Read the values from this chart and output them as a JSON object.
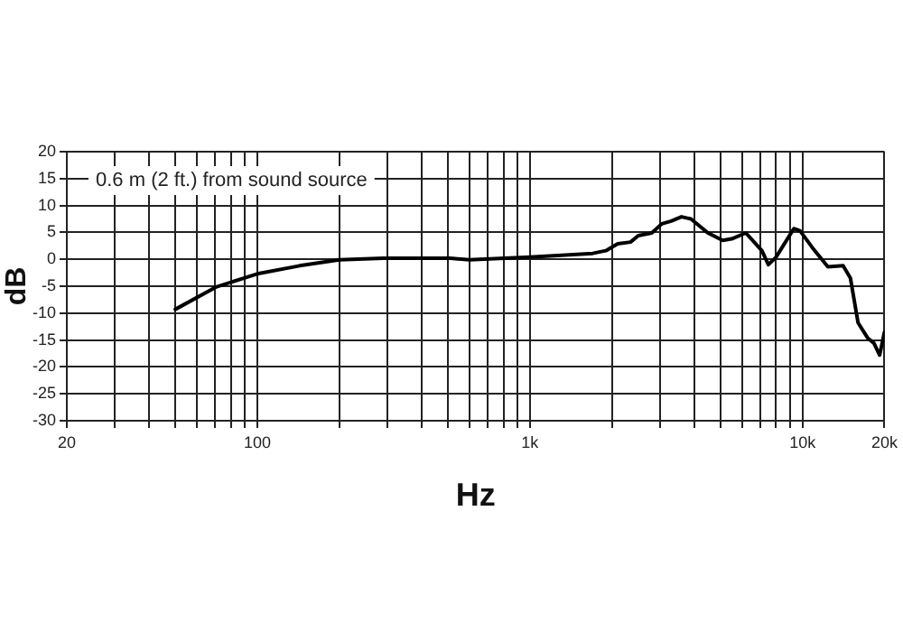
{
  "chart_data": {
    "type": "line",
    "xlabel": "Hz",
    "ylabel": "dB",
    "annotations": [
      "0.6 m (2 ft.) from sound source"
    ],
    "log": "x",
    "grid": true,
    "legend": false,
    "marker": "none",
    "line_style": "solid",
    "xlim": [
      20,
      20000
    ],
    "ylim": [
      -30,
      20
    ],
    "xticks": [
      20,
      {
        "value": 30,
        "label": null
      },
      {
        "value": 40,
        "label": null
      },
      {
        "value": 50,
        "label": null
      },
      {
        "value": 60,
        "label": null
      },
      {
        "value": 70,
        "label": null
      },
      {
        "value": 80,
        "label": null
      },
      {
        "value": 90,
        "label": null
      },
      100,
      {
        "value": 200,
        "label": null
      },
      {
        "value": 300,
        "label": null
      },
      {
        "value": 400,
        "label": null
      },
      {
        "value": 500,
        "label": null
      },
      {
        "value": 600,
        "label": null
      },
      {
        "value": 700,
        "label": null
      },
      {
        "value": 800,
        "label": null
      },
      {
        "value": 900,
        "label": null
      },
      {
        "value": 1000,
        "label": "1k"
      },
      {
        "value": 2000,
        "label": null
      },
      {
        "value": 3000,
        "label": null
      },
      {
        "value": 4000,
        "label": null
      },
      {
        "value": 5000,
        "label": null
      },
      {
        "value": 6000,
        "label": null
      },
      {
        "value": 7000,
        "label": null
      },
      {
        "value": 8000,
        "label": null
      },
      {
        "value": 9000,
        "label": null
      },
      {
        "value": 10000,
        "label": "10k"
      },
      {
        "value": 20000,
        "label": "20k"
      }
    ],
    "yticks": [
      -30,
      -25,
      -20,
      -15,
      -10,
      -5,
      0,
      5,
      10,
      15,
      20
    ],
    "series": [
      {
        "color": "#000000",
        "x": [
          50,
          71,
          100,
          143,
          200,
          290,
          510,
          600,
          1000,
          1350,
          1700,
          1900,
          2100,
          2340,
          2500,
          2800,
          3050,
          3300,
          3600,
          3900,
          4500,
          5100,
          5500,
          6200,
          7100,
          7500,
          8000,
          9300,
          9800,
          10900,
          12400,
          14100,
          15000,
          16000,
          17400,
          18300,
          19200,
          20000
        ],
        "values": [
          -9.3,
          -5.1,
          -2.7,
          -1.2,
          -0.1,
          0.2,
          0.2,
          -0.1,
          0.4,
          0.8,
          1.1,
          1.6,
          2.9,
          3.2,
          4.4,
          4.9,
          6.6,
          7.1,
          7.9,
          7.5,
          4.9,
          3.5,
          3.8,
          4.9,
          1.6,
          -1,
          0.4,
          5.7,
          5.3,
          2.1,
          -1.4,
          -1.2,
          -3.5,
          -11.8,
          -14.7,
          -15.6,
          -17.8,
          -13.5
        ]
      }
    ]
  }
}
